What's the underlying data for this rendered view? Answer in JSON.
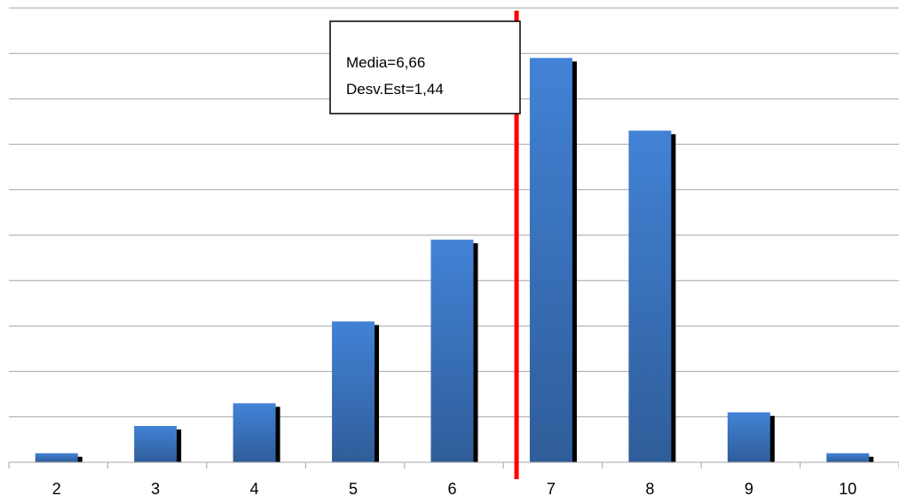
{
  "chart_data": {
    "type": "bar",
    "title": "",
    "xlabel": "",
    "ylabel": "",
    "categories": [
      "2",
      "3",
      "4",
      "5",
      "6",
      "7",
      "8",
      "9",
      "10"
    ],
    "values": [
      0.2,
      0.8,
      1.3,
      3.1,
      4.9,
      8.9,
      7.3,
      1.1,
      0.2
    ],
    "ylim": [
      0,
      10
    ],
    "grid": true,
    "legend": "none",
    "y_tick_labels_shown": false,
    "mean_line_x": 6.66,
    "annotation": {
      "line1": "Media=6,66",
      "line2": "Desv.Est=1,44"
    },
    "colors": {
      "bar_top": "#4282d6",
      "bar_bottom": "#2f5d99",
      "bar_shadow": "#000000",
      "mean_line": "#ff0000",
      "grid": "#a6a6a6"
    }
  }
}
